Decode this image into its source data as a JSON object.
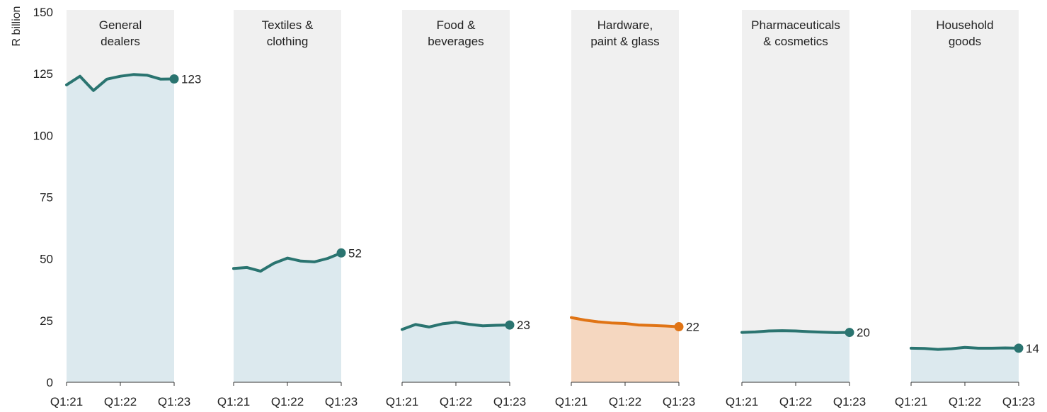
{
  "chart_data": {
    "type": "area",
    "ylabel": "R billion",
    "ylim": [
      0,
      150
    ],
    "yticks": [
      0,
      25,
      50,
      75,
      100,
      125,
      150
    ],
    "x": [
      "Q1:21",
      "Q2:21",
      "Q3:21",
      "Q4:21",
      "Q1:22",
      "Q2:22",
      "Q3:22",
      "Q4:22",
      "Q1:23"
    ],
    "xtick_labels": [
      "Q1:21",
      "Q1:22",
      "Q1:23"
    ],
    "grid": false,
    "colors": {
      "default_line": "#2a7470",
      "default_fill": "#dce9ee",
      "highlight_line": "#e07415",
      "highlight_fill": "#f5d7c0",
      "panel_bg": "#f0f0f0"
    },
    "panels": [
      {
        "title": [
          "General",
          "dealers"
        ],
        "highlight": false,
        "last_label": "123",
        "values": [
          120.5,
          124,
          118.2,
          122.8,
          124,
          124.7,
          124.4,
          122.8,
          122.9
        ]
      },
      {
        "title": [
          "Textiles &",
          "clothing"
        ],
        "highlight": false,
        "last_label": "52",
        "values": [
          46.1,
          46.5,
          45,
          48.2,
          50.3,
          49.1,
          48.8,
          50.2,
          52.4
        ]
      },
      {
        "title": [
          "Food &",
          "beverages"
        ],
        "highlight": false,
        "last_label": "23",
        "values": [
          21.4,
          23.4,
          22.4,
          23.7,
          24.3,
          23.5,
          22.9,
          23.1,
          23.2
        ]
      },
      {
        "title": [
          "Hardware,",
          "paint & glass"
        ],
        "highlight": true,
        "last_label": "22",
        "values": [
          26.2,
          25.2,
          24.5,
          24,
          23.8,
          23.2,
          23,
          22.8,
          22.5
        ]
      },
      {
        "title": [
          "Pharmaceuticals",
          "& cosmetics"
        ],
        "highlight": false,
        "last_label": "20",
        "values": [
          20.2,
          20.4,
          20.8,
          20.9,
          20.8,
          20.5,
          20.3,
          20.1,
          20.2
        ]
      },
      {
        "title": [
          "Household",
          "goods"
        ],
        "highlight": false,
        "last_label": "14",
        "values": [
          13.8,
          13.7,
          13.3,
          13.6,
          14.1,
          13.8,
          13.8,
          13.9,
          13.8
        ]
      }
    ]
  }
}
